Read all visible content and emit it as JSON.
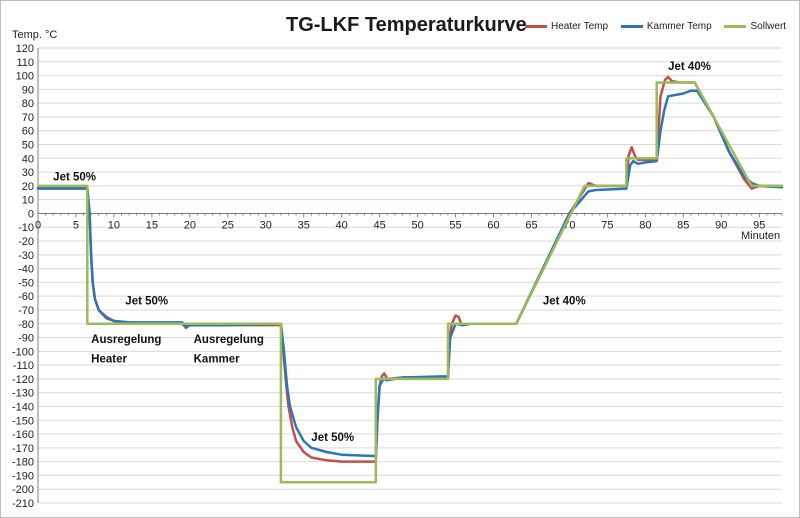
{
  "chart_data": {
    "type": "line",
    "title": "TG-LKF Temperaturkurve",
    "ylabel": "Temp. °C",
    "xlabel": "Minuten",
    "xlim": [
      0,
      98
    ],
    "ylim": [
      -210,
      120
    ],
    "x_ticks": [
      0,
      5,
      10,
      15,
      20,
      25,
      30,
      35,
      40,
      45,
      50,
      55,
      60,
      65,
      70,
      75,
      80,
      85,
      90,
      95
    ],
    "y_ticks": [
      120,
      110,
      100,
      90,
      80,
      70,
      60,
      50,
      40,
      30,
      20,
      10,
      0,
      -10,
      -20,
      -30,
      -40,
      -50,
      -60,
      -70,
      -80,
      -90,
      -100,
      -110,
      -120,
      -130,
      -140,
      -150,
      -160,
      -170,
      -180,
      -190,
      -200,
      -210
    ],
    "grid": "horizontal",
    "legend": "top-right",
    "series": [
      {
        "name": "Heater Temp",
        "color": "#c0504d",
        "points": [
          [
            0,
            19
          ],
          [
            6.5,
            19
          ],
          [
            6.8,
            0
          ],
          [
            7,
            -30
          ],
          [
            7.2,
            -50
          ],
          [
            7.5,
            -62
          ],
          [
            8,
            -70
          ],
          [
            9,
            -75
          ],
          [
            10,
            -78
          ],
          [
            12,
            -79
          ],
          [
            15,
            -80
          ],
          [
            19,
            -80
          ],
          [
            19.5,
            -83
          ],
          [
            20,
            -81
          ],
          [
            25,
            -81
          ],
          [
            32,
            -81
          ],
          [
            32.3,
            -100
          ],
          [
            32.7,
            -125
          ],
          [
            33,
            -140
          ],
          [
            33.5,
            -155
          ],
          [
            34,
            -165
          ],
          [
            35,
            -173
          ],
          [
            36,
            -177
          ],
          [
            38,
            -179
          ],
          [
            40,
            -180
          ],
          [
            44.5,
            -180
          ],
          [
            44.7,
            -150
          ],
          [
            45,
            -125
          ],
          [
            45.3,
            -118
          ],
          [
            45.6,
            -116
          ],
          [
            46,
            -120
          ],
          [
            48,
            -119
          ],
          [
            54,
            -119
          ],
          [
            54.2,
            -90
          ],
          [
            54.5,
            -80
          ],
          [
            55,
            -74
          ],
          [
            55.4,
            -75
          ],
          [
            55.8,
            -81
          ],
          [
            57,
            -80
          ],
          [
            63,
            -80
          ],
          [
            70,
            0
          ],
          [
            72.5,
            22
          ],
          [
            73.5,
            20
          ],
          [
            77.5,
            20
          ],
          [
            77.8,
            42
          ],
          [
            78.2,
            48
          ],
          [
            78.6,
            42
          ],
          [
            79,
            39
          ],
          [
            81.5,
            39
          ],
          [
            82,
            85
          ],
          [
            82.6,
            97
          ],
          [
            83,
            99
          ],
          [
            83.5,
            96
          ],
          [
            84.5,
            95
          ],
          [
            86.5,
            95
          ],
          [
            89,
            70
          ],
          [
            91,
            45
          ],
          [
            93,
            25
          ],
          [
            94,
            18
          ],
          [
            95,
            20
          ],
          [
            98,
            20
          ]
        ]
      },
      {
        "name": "Kammer Temp",
        "color": "#2e75b6",
        "points": [
          [
            0,
            18
          ],
          [
            6.5,
            18
          ],
          [
            6.8,
            0
          ],
          [
            7,
            -30
          ],
          [
            7.2,
            -50
          ],
          [
            7.5,
            -62
          ],
          [
            8,
            -70
          ],
          [
            9,
            -76
          ],
          [
            10,
            -78
          ],
          [
            12,
            -79
          ],
          [
            15,
            -79
          ],
          [
            19,
            -79
          ],
          [
            19.5,
            -82
          ],
          [
            20,
            -81
          ],
          [
            25,
            -81
          ],
          [
            32,
            -80
          ],
          [
            32.4,
            -100
          ],
          [
            32.8,
            -125
          ],
          [
            33.2,
            -140
          ],
          [
            34,
            -155
          ],
          [
            35,
            -165
          ],
          [
            36,
            -170
          ],
          [
            38,
            -173
          ],
          [
            40,
            -175
          ],
          [
            44.5,
            -176
          ],
          [
            44.7,
            -150
          ],
          [
            45,
            -125
          ],
          [
            45.5,
            -120
          ],
          [
            46,
            -121
          ],
          [
            48,
            -119
          ],
          [
            54,
            -118
          ],
          [
            54.3,
            -90
          ],
          [
            55,
            -80
          ],
          [
            56,
            -81
          ],
          [
            57,
            -80
          ],
          [
            63,
            -80
          ],
          [
            70,
            0
          ],
          [
            72.5,
            16
          ],
          [
            73.5,
            17
          ],
          [
            77.5,
            18
          ],
          [
            78,
            35
          ],
          [
            78.4,
            38
          ],
          [
            79,
            36
          ],
          [
            80,
            37
          ],
          [
            81.5,
            38
          ],
          [
            82,
            60
          ],
          [
            82.5,
            75
          ],
          [
            83,
            85
          ],
          [
            84,
            86
          ],
          [
            85,
            87
          ],
          [
            86,
            89
          ],
          [
            86.8,
            89
          ],
          [
            89,
            70
          ],
          [
            91,
            45
          ],
          [
            93,
            27
          ],
          [
            94,
            22
          ],
          [
            95,
            20
          ],
          [
            98,
            19
          ]
        ]
      },
      {
        "name": "Sollwert",
        "color": "#9bbb59",
        "points": [
          [
            0,
            20
          ],
          [
            6.5,
            20
          ],
          [
            6.5,
            -80
          ],
          [
            32,
            -80
          ],
          [
            32,
            -195
          ],
          [
            44.5,
            -195
          ],
          [
            44.5,
            -120
          ],
          [
            54,
            -120
          ],
          [
            54,
            -80
          ],
          [
            63,
            -80
          ],
          [
            72,
            20
          ],
          [
            77.5,
            20
          ],
          [
            77.5,
            40
          ],
          [
            81.5,
            40
          ],
          [
            81.5,
            95
          ],
          [
            86.5,
            95
          ],
          [
            94,
            20
          ],
          [
            98,
            20
          ]
        ]
      }
    ],
    "annotations": [
      {
        "text": "Jet 50%",
        "x": 2,
        "y": 24,
        "bold": true
      },
      {
        "text": "Jet 50%",
        "x": 11.5,
        "y": -66,
        "bold": true
      },
      {
        "text": "Ausregelung",
        "x": 7,
        "y": -94,
        "bold": true
      },
      {
        "text": "Heater",
        "x": 7,
        "y": -108,
        "bold": true
      },
      {
        "text": "Ausregelung",
        "x": 20.5,
        "y": -94,
        "bold": true
      },
      {
        "text": "Kammer",
        "x": 20.5,
        "y": -108,
        "bold": true
      },
      {
        "text": "Jet 50%",
        "x": 36,
        "y": -165,
        "bold": true
      },
      {
        "text": "Jet 40%",
        "x": 66.5,
        "y": -66,
        "bold": true
      },
      {
        "text": "Jet 40%",
        "x": 83,
        "y": 104,
        "bold": true
      }
    ]
  }
}
